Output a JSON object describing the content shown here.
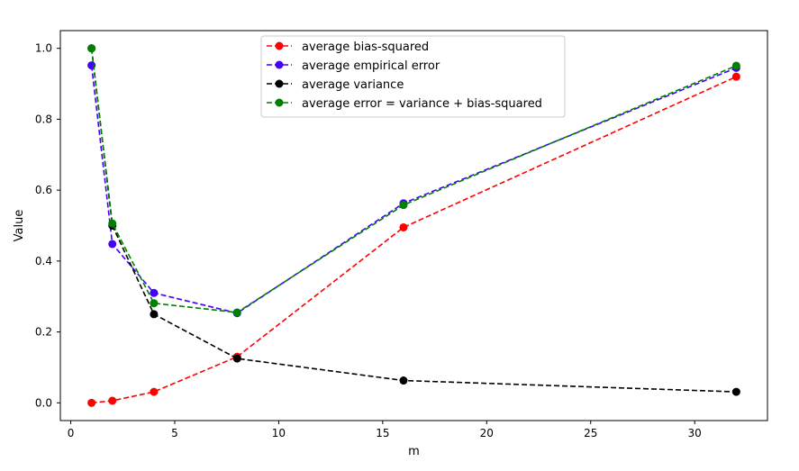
{
  "chart_data": {
    "type": "line",
    "title": "",
    "xlabel": "m",
    "ylabel": "Value",
    "xlim": [
      -0.5,
      33.5
    ],
    "ylim": [
      -0.05,
      1.05
    ],
    "xticks": [
      0,
      5,
      10,
      15,
      20,
      25,
      30
    ],
    "xtick_labels": [
      "0",
      "5",
      "10",
      "15",
      "20",
      "25",
      "30"
    ],
    "yticks": [
      0.0,
      0.2,
      0.4,
      0.6,
      0.8,
      1.0
    ],
    "ytick_labels": [
      "0.0",
      "0.2",
      "0.4",
      "0.6",
      "0.8",
      "1.0"
    ],
    "grid": false,
    "legend_position": "top-center",
    "x": [
      1,
      2,
      4,
      8,
      16,
      32
    ],
    "series": [
      {
        "name": "average bias-squared",
        "color": "#ff0000",
        "style": "dashed",
        "marker": "circle",
        "values": [
          0.0,
          0.006,
          0.031,
          0.13,
          0.495,
          0.92
        ]
      },
      {
        "name": "average empirical error",
        "color": "#4400ff",
        "style": "dashed",
        "marker": "circle",
        "values": [
          0.952,
          0.448,
          0.31,
          0.253,
          0.563,
          0.945
        ]
      },
      {
        "name": "average variance",
        "color": "#000000",
        "style": "dashed",
        "marker": "circle",
        "values": [
          1.0,
          0.5,
          0.25,
          0.125,
          0.063,
          0.031
        ]
      },
      {
        "name": "average error = variance + bias-squared",
        "color": "#008000",
        "style": "dashed",
        "marker": "circle",
        "values": [
          1.0,
          0.506,
          0.281,
          0.255,
          0.558,
          0.951
        ]
      }
    ]
  }
}
